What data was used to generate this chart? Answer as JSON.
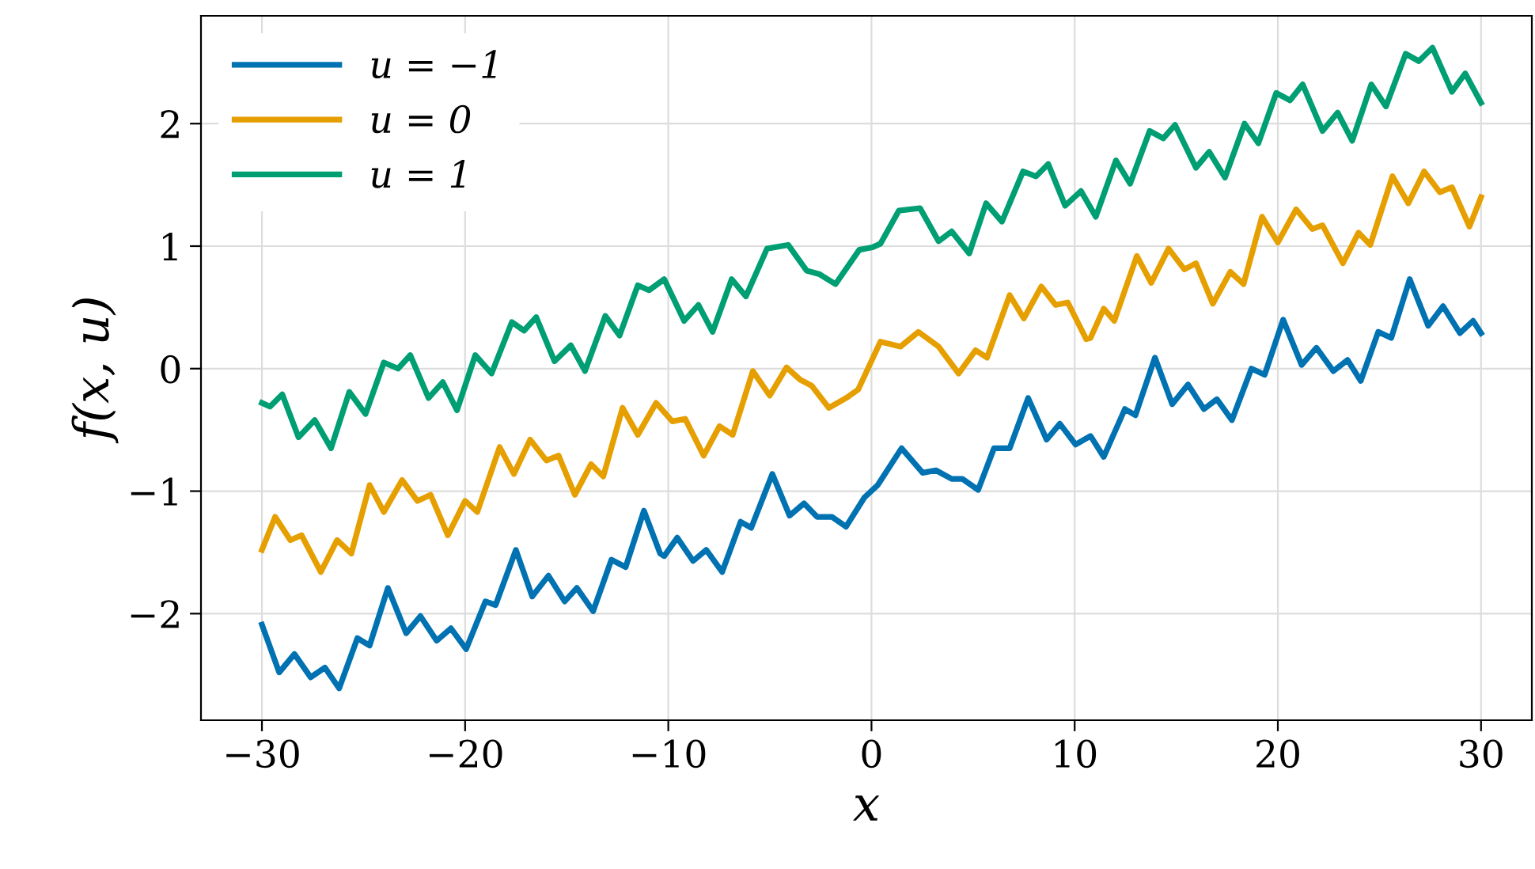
{
  "chart_data": {
    "type": "line",
    "xlabel": "x",
    "ylabel": "f(x, u)",
    "xlim": [
      -33,
      32.5
    ],
    "ylim": [
      -2.87,
      2.88
    ],
    "xticks": [
      -30,
      -20,
      -10,
      0,
      10,
      20,
      30
    ],
    "yticks": [
      -2,
      -1,
      0,
      1,
      2
    ],
    "grid": true,
    "legend": "top left",
    "series": [
      {
        "name": "u = −1",
        "color": "#0072b2",
        "x": [
          -30,
          -29.15,
          -28.4,
          -27.6,
          -26.9,
          -26.2,
          -25.3,
          -24.7,
          -23.8,
          -22.9,
          -22.2,
          -21.4,
          -20.7,
          -19.95,
          -19.0,
          -18.5,
          -17.5,
          -16.7,
          -15.9,
          -15.1,
          -14.5,
          -13.7,
          -12.8,
          -12.1,
          -11.2,
          -10.4,
          -10.2,
          -9.56,
          -8.78,
          -8.13,
          -7.35,
          -6.44,
          -5.92,
          -4.88,
          -4.03,
          -3.32,
          -2.68,
          -1.95,
          -1.25,
          -0.34,
          0.31,
          1.48,
          2.52,
          3.17,
          3.95,
          4.47,
          5.25,
          6.03,
          6.8,
          7.71,
          8.62,
          9.27,
          10.05,
          10.78,
          11.43,
          12.47,
          12.99,
          13.95,
          14.8,
          15.58,
          16.36,
          17.0,
          17.74,
          18.7,
          19.35,
          20.26,
          21.17,
          21.9,
          22.73,
          23.43,
          24.08,
          24.94,
          25.58,
          26.49,
          27.4,
          28.13,
          28.96,
          29.61,
          30
        ],
        "values": [
          -2.09,
          -2.48,
          -2.33,
          -2.52,
          -2.44,
          -2.61,
          -2.2,
          -2.26,
          -1.79,
          -2.16,
          -2.02,
          -2.22,
          -2.12,
          -2.29,
          -1.9,
          -1.93,
          -1.48,
          -1.86,
          -1.69,
          -1.9,
          -1.79,
          -1.98,
          -1.56,
          -1.62,
          -1.16,
          -1.51,
          -1.53,
          -1.38,
          -1.57,
          -1.48,
          -1.66,
          -1.25,
          -1.3,
          -0.86,
          -1.2,
          -1.1,
          -1.21,
          -1.21,
          -1.29,
          -1.05,
          -0.95,
          -0.65,
          -0.85,
          -0.83,
          -0.9,
          -0.9,
          -0.99,
          -0.65,
          -0.65,
          -0.24,
          -0.58,
          -0.45,
          -0.62,
          -0.55,
          -0.72,
          -0.33,
          -0.38,
          0.09,
          -0.29,
          -0.13,
          -0.33,
          -0.25,
          -0.42,
          0,
          -0.05,
          0.4,
          0.03,
          0.17,
          -0.02,
          0.07,
          -0.1,
          0.3,
          0.25,
          0.73,
          0.35,
          0.51,
          0.29,
          0.39,
          0.29
        ]
      },
      {
        "name": "u = 0",
        "color": "#e69f00",
        "x": [
          -30,
          -29.35,
          -28.6,
          -28.05,
          -27.1,
          -26.3,
          -25.6,
          -24.7,
          -24.0,
          -23.1,
          -22.35,
          -21.7,
          -20.85,
          -20.0,
          -19.4,
          -18.3,
          -17.6,
          -16.8,
          -16.0,
          -15.4,
          -14.6,
          -13.8,
          -13.2,
          -12.25,
          -11.5,
          -10.6,
          -9.8,
          -9.17,
          -8.26,
          -7.48,
          -6.83,
          -5.84,
          -5.01,
          -4.18,
          -3.51,
          -2.94,
          -2.1,
          -1.25,
          -0.65,
          0.44,
          1.43,
          2.31,
          3.3,
          4.29,
          5.12,
          5.69,
          6.8,
          7.5,
          8.36,
          9.06,
          9.66,
          10.57,
          10.78,
          11.43,
          11.95,
          13.06,
          13.77,
          14.62,
          15.4,
          15.97,
          16.8,
          17.66,
          18.31,
          19.22,
          20,
          20.9,
          21.69,
          22.2,
          23.2,
          23.97,
          24.55,
          25.64,
          26.42,
          27.2,
          27.97,
          28.57,
          29.43,
          30
        ],
        "values": [
          -1.48,
          -1.21,
          -1.4,
          -1.36,
          -1.66,
          -1.4,
          -1.51,
          -0.95,
          -1.17,
          -0.91,
          -1.08,
          -1.03,
          -1.36,
          -1.08,
          -1.17,
          -0.64,
          -0.86,
          -0.58,
          -0.75,
          -0.71,
          -1.03,
          -0.78,
          -0.88,
          -0.32,
          -0.54,
          -0.28,
          -0.43,
          -0.41,
          -0.71,
          -0.47,
          -0.54,
          -0.02,
          -0.22,
          0.01,
          -0.09,
          -0.14,
          -0.32,
          -0.24,
          -0.17,
          0.22,
          0.18,
          0.3,
          0.18,
          -0.04,
          0.15,
          0.09,
          0.6,
          0.41,
          0.67,
          0.52,
          0.54,
          0.24,
          0.25,
          0.49,
          0.39,
          0.92,
          0.7,
          0.98,
          0.81,
          0.86,
          0.53,
          0.79,
          0.69,
          1.24,
          1.03,
          1.3,
          1.14,
          1.17,
          0.86,
          1.11,
          1.01,
          1.57,
          1.35,
          1.61,
          1.44,
          1.48,
          1.16,
          1.4
        ]
      },
      {
        "name": "u = 1",
        "color": "#009e73",
        "x": [
          -30,
          -29.6,
          -29,
          -28.2,
          -27.4,
          -26.6,
          -25.7,
          -24.9,
          -24,
          -23.3,
          -22.7,
          -21.8,
          -21.1,
          -20.4,
          -19.5,
          -18.7,
          -17.7,
          -17.1,
          -16.5,
          -15.6,
          -14.8,
          -14.1,
          -13.1,
          -12.4,
          -11.5,
          -10.95,
          -10.2,
          -9.22,
          -8.52,
          -7.82,
          -6.88,
          -6.18,
          -5.14,
          -4.1,
          -3.19,
          -2.55,
          -1.77,
          -0.6,
          0.05,
          0.44,
          1.35,
          2.39,
          3.3,
          3.95,
          4.81,
          5.64,
          6.42,
          7.46,
          8.1,
          8.7,
          9.53,
          10.31,
          11.04,
          12.03,
          12.73,
          13.69,
          14.36,
          14.94,
          15.97,
          16.62,
          17.4,
          18.36,
          19.04,
          19.92,
          20.6,
          21.22,
          22.2,
          22.94,
          23.66,
          24.6,
          25.32,
          26.29,
          26.94,
          27.61,
          28.57,
          29.22,
          30
        ],
        "values": [
          -0.28,
          -0.31,
          -0.21,
          -0.56,
          -0.42,
          -0.65,
          -0.19,
          -0.37,
          0.05,
          0,
          0.11,
          -0.24,
          -0.11,
          -0.34,
          0.11,
          -0.04,
          0.38,
          0.31,
          0.42,
          0.06,
          0.19,
          -0.02,
          0.43,
          0.27,
          0.68,
          0.64,
          0.73,
          0.39,
          0.52,
          0.3,
          0.73,
          0.59,
          0.98,
          1.01,
          0.8,
          0.77,
          0.69,
          0.97,
          0.99,
          1.02,
          1.29,
          1.31,
          1.04,
          1.12,
          0.94,
          1.35,
          1.2,
          1.61,
          1.57,
          1.67,
          1.33,
          1.45,
          1.24,
          1.7,
          1.51,
          1.94,
          1.88,
          1.99,
          1.64,
          1.77,
          1.56,
          2.0,
          1.84,
          2.25,
          2.19,
          2.32,
          1.94,
          2.09,
          1.86,
          2.32,
          2.14,
          2.57,
          2.51,
          2.62,
          2.26,
          2.41,
          2.17
        ]
      }
    ]
  }
}
